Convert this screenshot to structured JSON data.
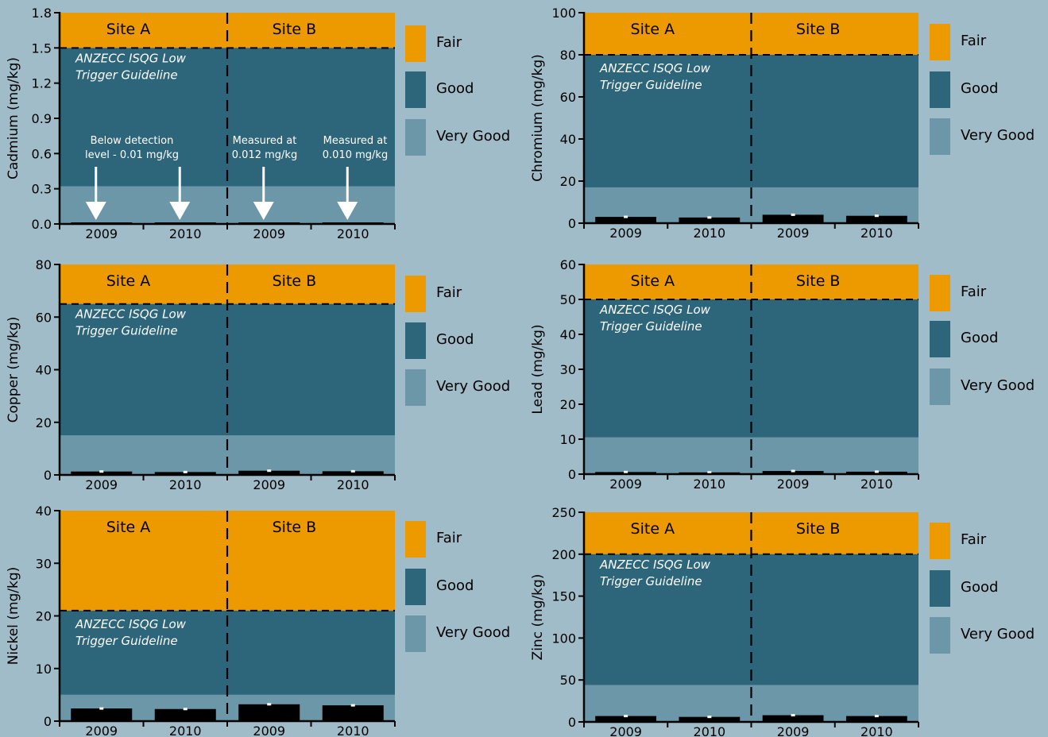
{
  "colors": {
    "background": "#9fbcc8",
    "fair": "#ec9a00",
    "good": "#2d657b",
    "very_good": "#6c97a8",
    "bar": "#000000",
    "error_bar": "#ffffff",
    "text_light": "#ffffff",
    "text_dark": "#000000"
  },
  "chart_data": [
    {
      "type": "bar",
      "ylabel": "Cadmium (mg/kg)",
      "ylim": [
        0,
        1.8
      ],
      "yticks": [
        0.0,
        0.3,
        0.6,
        0.9,
        1.2,
        1.5,
        1.8
      ],
      "ytick_labels": [
        "0.0",
        "0.3",
        "0.6",
        "0.9",
        "1.2",
        "1.5",
        "1.8"
      ],
      "categories": [
        "2009",
        "2010",
        "2009",
        "2010"
      ],
      "groups": [
        "Site A",
        "Site B"
      ],
      "values": [
        0.01,
        0.01,
        0.012,
        0.01
      ],
      "errors": [
        0,
        0,
        0,
        0
      ],
      "bands": {
        "very_good": 0.32,
        "good": 1.5
      },
      "guideline_label": [
        "ANZECC ISQG Low",
        "Trigger Guideline"
      ],
      "legend": [
        "Fair",
        "Good",
        "Very Good"
      ],
      "annotations": [
        {
          "lines": [
            "Below detection",
            "level - 0.01 mg/kg"
          ],
          "targets": [
            0,
            1
          ]
        },
        {
          "lines": [
            "Measured at",
            "0.012 mg/kg"
          ],
          "targets": [
            2
          ]
        },
        {
          "lines": [
            "Measured at",
            "0.010 mg/kg"
          ],
          "targets": [
            3
          ]
        }
      ]
    },
    {
      "type": "bar",
      "ylabel": "Chromium (mg/kg)",
      "ylim": [
        0,
        100
      ],
      "yticks": [
        0,
        20,
        40,
        60,
        80,
        100
      ],
      "ytick_labels": [
        "0",
        "20",
        "40",
        "60",
        "80",
        "100"
      ],
      "categories": [
        "2009",
        "2010",
        "2009",
        "2010"
      ],
      "groups": [
        "Site A",
        "Site B"
      ],
      "values": [
        3.0,
        2.7,
        4.0,
        3.5
      ],
      "errors": [
        0.3,
        0.3,
        0.3,
        0.3
      ],
      "bands": {
        "very_good": 17,
        "good": 80
      },
      "guideline_label": [
        "ANZECC ISQG Low",
        "Trigger Guideline"
      ],
      "legend": [
        "Fair",
        "Good",
        "Very Good"
      ]
    },
    {
      "type": "bar",
      "ylabel": "Copper (mg/kg)",
      "ylim": [
        0,
        80
      ],
      "yticks": [
        0,
        20,
        40,
        60,
        80
      ],
      "ytick_labels": [
        "0",
        "20",
        "40",
        "60",
        "80"
      ],
      "categories": [
        "2009",
        "2010",
        "2009",
        "2010"
      ],
      "groups": [
        "Site A",
        "Site B"
      ],
      "values": [
        1.3,
        1.1,
        1.6,
        1.4
      ],
      "errors": [
        0.3,
        0.3,
        0.3,
        0.3
      ],
      "bands": {
        "very_good": 15,
        "good": 65
      },
      "guideline_label": [
        "ANZECC ISQG Low",
        "Trigger Guideline"
      ],
      "legend": [
        "Fair",
        "Good",
        "Very Good"
      ]
    },
    {
      "type": "bar",
      "ylabel": "Lead (mg/kg)",
      "ylim": [
        0,
        60
      ],
      "yticks": [
        0,
        10,
        20,
        30,
        40,
        50,
        60
      ],
      "ytick_labels": [
        "0",
        "10",
        "20",
        "30",
        "40",
        "50",
        "60"
      ],
      "categories": [
        "2009",
        "2010",
        "2009",
        "2010"
      ],
      "groups": [
        "Site A",
        "Site B"
      ],
      "values": [
        0.6,
        0.5,
        0.9,
        0.7
      ],
      "errors": [
        0.2,
        0.2,
        0.2,
        0.2
      ],
      "bands": {
        "very_good": 10.5,
        "good": 50
      },
      "guideline_label": [
        "ANZECC ISQG Low",
        "Trigger Guideline"
      ],
      "legend": [
        "Fair",
        "Good",
        "Very Good"
      ]
    },
    {
      "type": "bar",
      "ylabel": "Nickel (mg/kg)",
      "ylim": [
        0,
        40
      ],
      "yticks": [
        0,
        10,
        20,
        30,
        40
      ],
      "ytick_labels": [
        "0",
        "10",
        "20",
        "30",
        "40"
      ],
      "categories": [
        "2009",
        "2010",
        "2009",
        "2010"
      ],
      "groups": [
        "Site A",
        "Site B"
      ],
      "values": [
        2.4,
        2.3,
        3.2,
        3.0
      ],
      "errors": [
        0.2,
        0.2,
        0.2,
        0.2
      ],
      "bands": {
        "very_good": 5,
        "good": 21
      },
      "guideline_label": [
        "ANZECC ISQG Low",
        "Trigger Guideline"
      ],
      "legend": [
        "Fair",
        "Good",
        "Very Good"
      ]
    },
    {
      "type": "bar",
      "ylabel": "Zinc  (mg/kg)",
      "ylim": [
        0,
        250
      ],
      "yticks": [
        0,
        50,
        100,
        150,
        200,
        250
      ],
      "ytick_labels": [
        "0",
        "50",
        "100",
        "150",
        "200",
        "250"
      ],
      "categories": [
        "2009",
        "2010",
        "2009",
        "2010"
      ],
      "groups": [
        "Site A",
        "Site B"
      ],
      "values": [
        7,
        6,
        8,
        7
      ],
      "errors": [
        1,
        1,
        1,
        1
      ],
      "bands": {
        "very_good": 44,
        "good": 200
      },
      "guideline_label": [
        "ANZECC ISQG Low",
        "Trigger Guideline"
      ],
      "legend": [
        "Fair",
        "Good",
        "Very Good"
      ]
    }
  ]
}
